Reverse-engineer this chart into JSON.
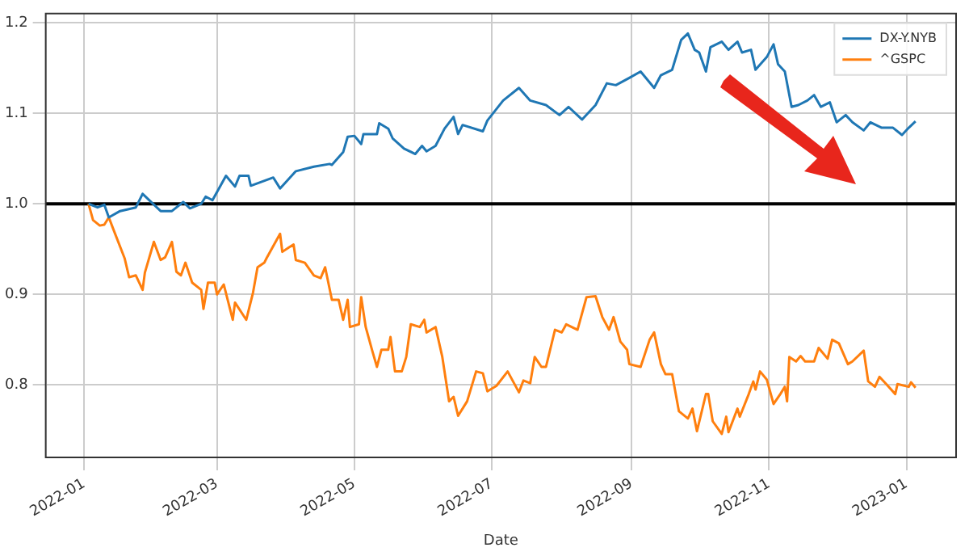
{
  "chart_data": {
    "type": "line",
    "xlabel": "Date",
    "xlim": [
      "2021-12-15",
      "2023-01-23"
    ],
    "xticks": [
      "2022-01",
      "2022-03",
      "2022-05",
      "2022-07",
      "2022-09",
      "2022-11",
      "2023-01"
    ],
    "ylim": [
      0.72,
      1.21
    ],
    "yticks": [
      0.8,
      0.9,
      {
        "value": 1,
        "label": "1.0"
      },
      1.1,
      1.2
    ],
    "grid": true,
    "legend": "top right",
    "marker": "none",
    "line_style": "solid",
    "ref_lines": [
      {
        "axis": "y",
        "value": 1,
        "color": "#000000"
      }
    ],
    "series": [
      {
        "name": "DX-Y.NYB",
        "color": "#1f77b4",
        "x": [
          "2022-01-03",
          "2022-01-07",
          "2022-01-10",
          "2022-01-12",
          "2022-01-17",
          "2022-01-24",
          "2022-01-27",
          "2022-02-04",
          "2022-02-09",
          "2022-02-14",
          "2022-02-17",
          "2022-02-22",
          "2022-02-24",
          "2022-02-27",
          "2022-03-05",
          "2022-03-09",
          "2022-03-11",
          "2022-03-15",
          "2022-03-16",
          "2022-03-26",
          "2022-03-29",
          "2022-04-05",
          "2022-04-13",
          "2022-04-20",
          "2022-04-21",
          "2022-04-26",
          "2022-04-28",
          "2022-05-01",
          "2022-05-04",
          "2022-05-05",
          "2022-05-11",
          "2022-05-12",
          "2022-05-16",
          "2022-05-18",
          "2022-05-23",
          "2022-05-28",
          "2022-05-31",
          "2022-06-02",
          "2022-06-06",
          "2022-06-10",
          "2022-06-14",
          "2022-06-16",
          "2022-06-18",
          "2022-06-27",
          "2022-06-29",
          "2022-07-06",
          "2022-07-13",
          "2022-07-18",
          "2022-07-25",
          "2022-07-31",
          "2022-08-04",
          "2022-08-10",
          "2022-08-16",
          "2022-08-21",
          "2022-08-25",
          "2022-08-31",
          "2022-09-05",
          "2022-09-11",
          "2022-09-14",
          "2022-09-19",
          "2022-09-23",
          "2022-09-26",
          "2022-09-29",
          "2022-10-01",
          "2022-10-04",
          "2022-10-06",
          "2022-10-11",
          "2022-10-14",
          "2022-10-18",
          "2022-10-20",
          "2022-10-24",
          "2022-10-26",
          "2022-10-31",
          "2022-11-03",
          "2022-11-05",
          "2022-11-08",
          "2022-11-11",
          "2022-11-14",
          "2022-11-18",
          "2022-11-21",
          "2022-11-24",
          "2022-11-28",
          "2022-12-01",
          "2022-12-05",
          "2022-12-08",
          "2022-12-13",
          "2022-12-16",
          "2022-12-21",
          "2022-12-26",
          "2022-12-30",
          "2023-01-02",
          "2023-01-05"
        ],
        "values": [
          1.0,
          0.996,
          0.999,
          0.985,
          0.992,
          0.996,
          1.011,
          0.992,
          0.992,
          1.002,
          0.995,
          1.0,
          1.008,
          1.004,
          1.031,
          1.019,
          1.031,
          1.031,
          1.02,
          1.029,
          1.017,
          1.036,
          1.041,
          1.044,
          1.043,
          1.057,
          1.074,
          1.075,
          1.066,
          1.077,
          1.077,
          1.089,
          1.083,
          1.072,
          1.061,
          1.055,
          1.064,
          1.058,
          1.064,
          1.083,
          1.096,
          1.077,
          1.087,
          1.08,
          1.092,
          1.114,
          1.128,
          1.114,
          1.109,
          1.098,
          1.107,
          1.093,
          1.109,
          1.133,
          1.131,
          1.139,
          1.146,
          1.128,
          1.142,
          1.148,
          1.181,
          1.188,
          1.17,
          1.167,
          1.146,
          1.173,
          1.179,
          1.17,
          1.179,
          1.167,
          1.17,
          1.148,
          1.162,
          1.176,
          1.154,
          1.146,
          1.107,
          1.109,
          1.114,
          1.12,
          1.107,
          1.112,
          1.09,
          1.098,
          1.09,
          1.081,
          1.09,
          1.084,
          1.084,
          1.076,
          1.084,
          1.091
        ]
      },
      {
        "name": "^GSPC",
        "color": "#ff7f0e",
        "x": [
          "2022-01-03",
          "2022-01-05",
          "2022-01-08",
          "2022-01-10",
          "2022-01-12",
          "2022-01-14",
          "2022-01-19",
          "2022-01-21",
          "2022-01-24",
          "2022-01-27",
          "2022-01-28",
          "2022-02-01",
          "2022-02-04",
          "2022-02-06",
          "2022-02-09",
          "2022-02-11",
          "2022-02-13",
          "2022-02-15",
          "2022-02-18",
          "2022-02-22",
          "2022-02-23",
          "2022-02-25",
          "2022-02-28",
          "2022-03-01",
          "2022-03-04",
          "2022-03-08",
          "2022-03-09",
          "2022-03-14",
          "2022-03-17",
          "2022-03-19",
          "2022-03-22",
          "2022-03-23",
          "2022-03-29",
          "2022-03-30",
          "2022-04-02",
          "2022-04-04",
          "2022-04-05",
          "2022-04-09",
          "2022-04-13",
          "2022-04-16",
          "2022-04-18",
          "2022-04-21",
          "2022-04-24",
          "2022-04-26",
          "2022-04-28",
          "2022-04-29",
          "2022-05-03",
          "2022-05-04",
          "2022-05-06",
          "2022-05-09",
          "2022-05-11",
          "2022-05-13",
          "2022-05-16",
          "2022-05-17",
          "2022-05-19",
          "2022-05-22",
          "2022-05-24",
          "2022-05-26",
          "2022-05-30",
          "2022-06-01",
          "2022-06-02",
          "2022-06-06",
          "2022-06-09",
          "2022-06-12",
          "2022-06-14",
          "2022-06-16",
          "2022-06-20",
          "2022-06-24",
          "2022-06-27",
          "2022-06-29",
          "2022-07-03",
          "2022-07-08",
          "2022-07-13",
          "2022-07-15",
          "2022-07-18",
          "2022-07-20",
          "2022-07-23",
          "2022-07-25",
          "2022-07-29",
          "2022-08-01",
          "2022-08-03",
          "2022-08-08",
          "2022-08-12",
          "2022-08-16",
          "2022-08-19",
          "2022-08-22",
          "2022-08-24",
          "2022-08-27",
          "2022-08-30",
          "2022-08-31",
          "2022-09-05",
          "2022-09-09",
          "2022-09-11",
          "2022-09-14",
          "2022-09-16",
          "2022-09-19",
          "2022-09-22",
          "2022-09-26",
          "2022-09-28",
          "2022-09-30",
          "2022-10-04",
          "2022-10-05",
          "2022-10-07",
          "2022-10-11",
          "2022-10-13",
          "2022-10-14",
          "2022-10-18",
          "2022-10-19",
          "2022-10-23",
          "2022-10-25",
          "2022-10-26",
          "2022-10-28",
          "2022-10-31",
          "2022-11-03",
          "2022-11-06",
          "2022-11-08",
          "2022-11-09",
          "2022-11-10",
          "2022-11-13",
          "2022-11-15",
          "2022-11-17",
          "2022-11-21",
          "2022-11-23",
          "2022-11-27",
          "2022-11-29",
          "2022-12-02",
          "2022-12-06",
          "2022-12-08",
          "2022-12-13",
          "2022-12-15",
          "2022-12-18",
          "2022-12-20",
          "2022-12-23",
          "2022-12-27",
          "2022-12-28",
          "2023-01-02",
          "2023-01-03",
          "2023-01-05"
        ],
        "values": [
          1.0,
          0.982,
          0.976,
          0.977,
          0.985,
          0.972,
          0.94,
          0.919,
          0.921,
          0.905,
          0.924,
          0.958,
          0.938,
          0.941,
          0.958,
          0.925,
          0.921,
          0.935,
          0.913,
          0.905,
          0.884,
          0.913,
          0.913,
          0.9,
          0.911,
          0.872,
          0.891,
          0.872,
          0.902,
          0.93,
          0.935,
          0.94,
          0.967,
          0.947,
          0.952,
          0.955,
          0.938,
          0.935,
          0.921,
          0.918,
          0.93,
          0.894,
          0.894,
          0.872,
          0.894,
          0.864,
          0.867,
          0.897,
          0.864,
          0.837,
          0.82,
          0.839,
          0.839,
          0.853,
          0.815,
          0.815,
          0.831,
          0.867,
          0.864,
          0.872,
          0.858,
          0.864,
          0.831,
          0.782,
          0.787,
          0.766,
          0.782,
          0.815,
          0.813,
          0.793,
          0.799,
          0.815,
          0.792,
          0.805,
          0.802,
          0.831,
          0.82,
          0.82,
          0.861,
          0.858,
          0.867,
          0.861,
          0.897,
          0.898,
          0.875,
          0.861,
          0.875,
          0.848,
          0.839,
          0.823,
          0.82,
          0.85,
          0.858,
          0.823,
          0.812,
          0.812,
          0.771,
          0.763,
          0.774,
          0.749,
          0.79,
          0.79,
          0.76,
          0.746,
          0.765,
          0.748,
          0.774,
          0.765,
          0.79,
          0.804,
          0.795,
          0.815,
          0.806,
          0.779,
          0.79,
          0.798,
          0.782,
          0.831,
          0.826,
          0.832,
          0.826,
          0.826,
          0.841,
          0.829,
          0.85,
          0.846,
          0.823,
          0.826,
          0.838,
          0.804,
          0.798,
          0.809,
          0.801,
          0.79,
          0.801,
          0.798,
          0.803,
          0.797
        ]
      }
    ]
  }
}
